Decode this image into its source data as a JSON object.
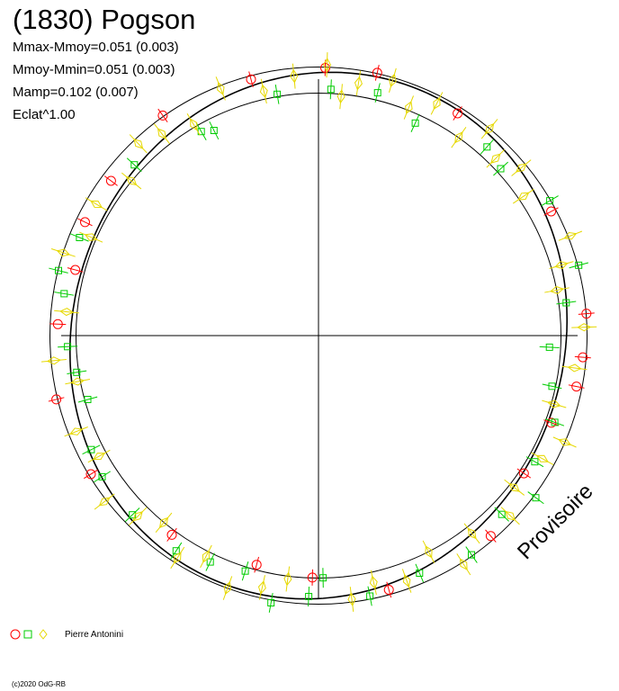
{
  "title": "(1830) Pogson",
  "stats": [
    "Mmax-Mmoy=0.051 (0.003)",
    "Mmoy-Mmin=0.051 (0.003)",
    "Mamp=0.102 (0.007)",
    "Eclat^1.00"
  ],
  "watermark": "Provisoire",
  "legend": {
    "observer": "Pierre Antonini"
  },
  "copyright": "(c)2020 OdG-RB",
  "colors": {
    "circle": "#ff0000",
    "square": "#00cc00",
    "diamond": "#ffff00",
    "curve": "#000000"
  },
  "chart_data": {
    "type": "scatter",
    "projection": "polar",
    "reference_circle": 1.0,
    "envelope": [
      0.949,
      1.051
    ],
    "grid": false,
    "axes": "cross",
    "legend_placement": "bottom-left",
    "amplitude": {
      "max_minus_mean": 0.051,
      "mean_minus_min": 0.051,
      "total": 0.102
    },
    "series": [
      {
        "name": "Pierre Antonini",
        "marker": "circle",
        "color": "#ff0000",
        "phase": [
          0.004,
          0.035,
          0.089,
          0.172,
          0.237,
          0.263,
          0.281,
          0.307,
          0.344,
          0.387,
          0.457,
          0.504,
          0.542,
          0.601,
          0.663,
          0.712,
          0.757,
          0.792,
          0.822,
          0.852,
          0.902,
          0.959
        ],
        "r": [
          1.048,
          1.054,
          1.026,
          1.032,
          1.052,
          1.038,
          1.029,
          0.973,
          0.968,
          1.034,
          1.032,
          0.947,
          0.929,
          0.968,
          1.043,
          1.056,
          1.021,
          0.986,
          1.016,
          1.013,
          1.055,
          1.037
        ]
      },
      {
        "name": "Pierre Antonini",
        "marker": "square",
        "color": "#00cc00",
        "phase": [
          0.008,
          0.038,
          0.068,
          0.116,
          0.132,
          0.166,
          0.208,
          0.229,
          0.258,
          0.284,
          0.306,
          0.334,
          0.352,
          0.373,
          0.403,
          0.436,
          0.469,
          0.497,
          0.506,
          0.528,
          0.548,
          0.571,
          0.593,
          0.628,
          0.658,
          0.676,
          0.707,
          0.726,
          0.743,
          0.776,
          0.789,
          0.812,
          0.869,
          0.917,
          0.925,
          0.973
        ],
        "r": [
          0.965,
          0.978,
          0.914,
          0.99,
          0.967,
          1.048,
          1.055,
          0.978,
          0.905,
          0.935,
          0.985,
          0.98,
          1.061,
          1.002,
          1.046,
          1.01,
          1.039,
          0.948,
          1.022,
          1.062,
          0.965,
          0.982,
          1.01,
          1.011,
          1.011,
          0.995,
          0.937,
          0.957,
          0.983,
          1.009,
          1.049,
          1.011,
          0.983,
          0.921,
          0.901,
          0.958
        ]
      },
      {
        "name": "Pierre Antonini",
        "marker": "diamond",
        "color": "#ffff00",
        "phase": [
          0.005,
          0.015,
          0.025,
          0.045,
          0.06,
          0.075,
          0.098,
          0.11,
          0.125,
          0.14,
          0.155,
          0.19,
          0.205,
          0.22,
          0.245,
          0.27,
          0.295,
          0.315,
          0.33,
          0.355,
          0.37,
          0.395,
          0.41,
          0.425,
          0.445,
          0.465,
          0.48,
          0.52,
          0.535,
          0.555,
          0.575,
          0.59,
          0.61,
          0.625,
          0.645,
          0.67,
          0.69,
          0.72,
          0.735,
          0.765,
          0.8,
          0.815,
          0.835,
          0.86,
          0.88,
          0.895,
          0.915,
          0.94,
          0.965,
          0.985
        ],
        "r": [
          1.06,
          0.94,
          1.0,
          1.04,
          0.96,
          1.02,
          0.95,
          1.05,
          0.98,
          1.03,
          0.97,
          1.06,
          0.99,
          0.95,
          1.04,
          1.01,
          0.96,
          1.05,
          1.0,
          0.97,
          1.03,
          0.98,
          1.06,
          0.95,
          1.02,
          0.99,
          1.04,
          0.96,
          1.01,
          1.05,
          0.97,
          1.03,
          0.95,
          1.0,
          1.06,
          0.98,
          1.02,
          0.96,
          1.04,
          0.99,
          1.05,
          0.97,
          1.01,
          0.95,
          1.03,
          1.0,
          0.96,
          1.04,
          0.98,
          1.02
        ]
      }
    ]
  }
}
